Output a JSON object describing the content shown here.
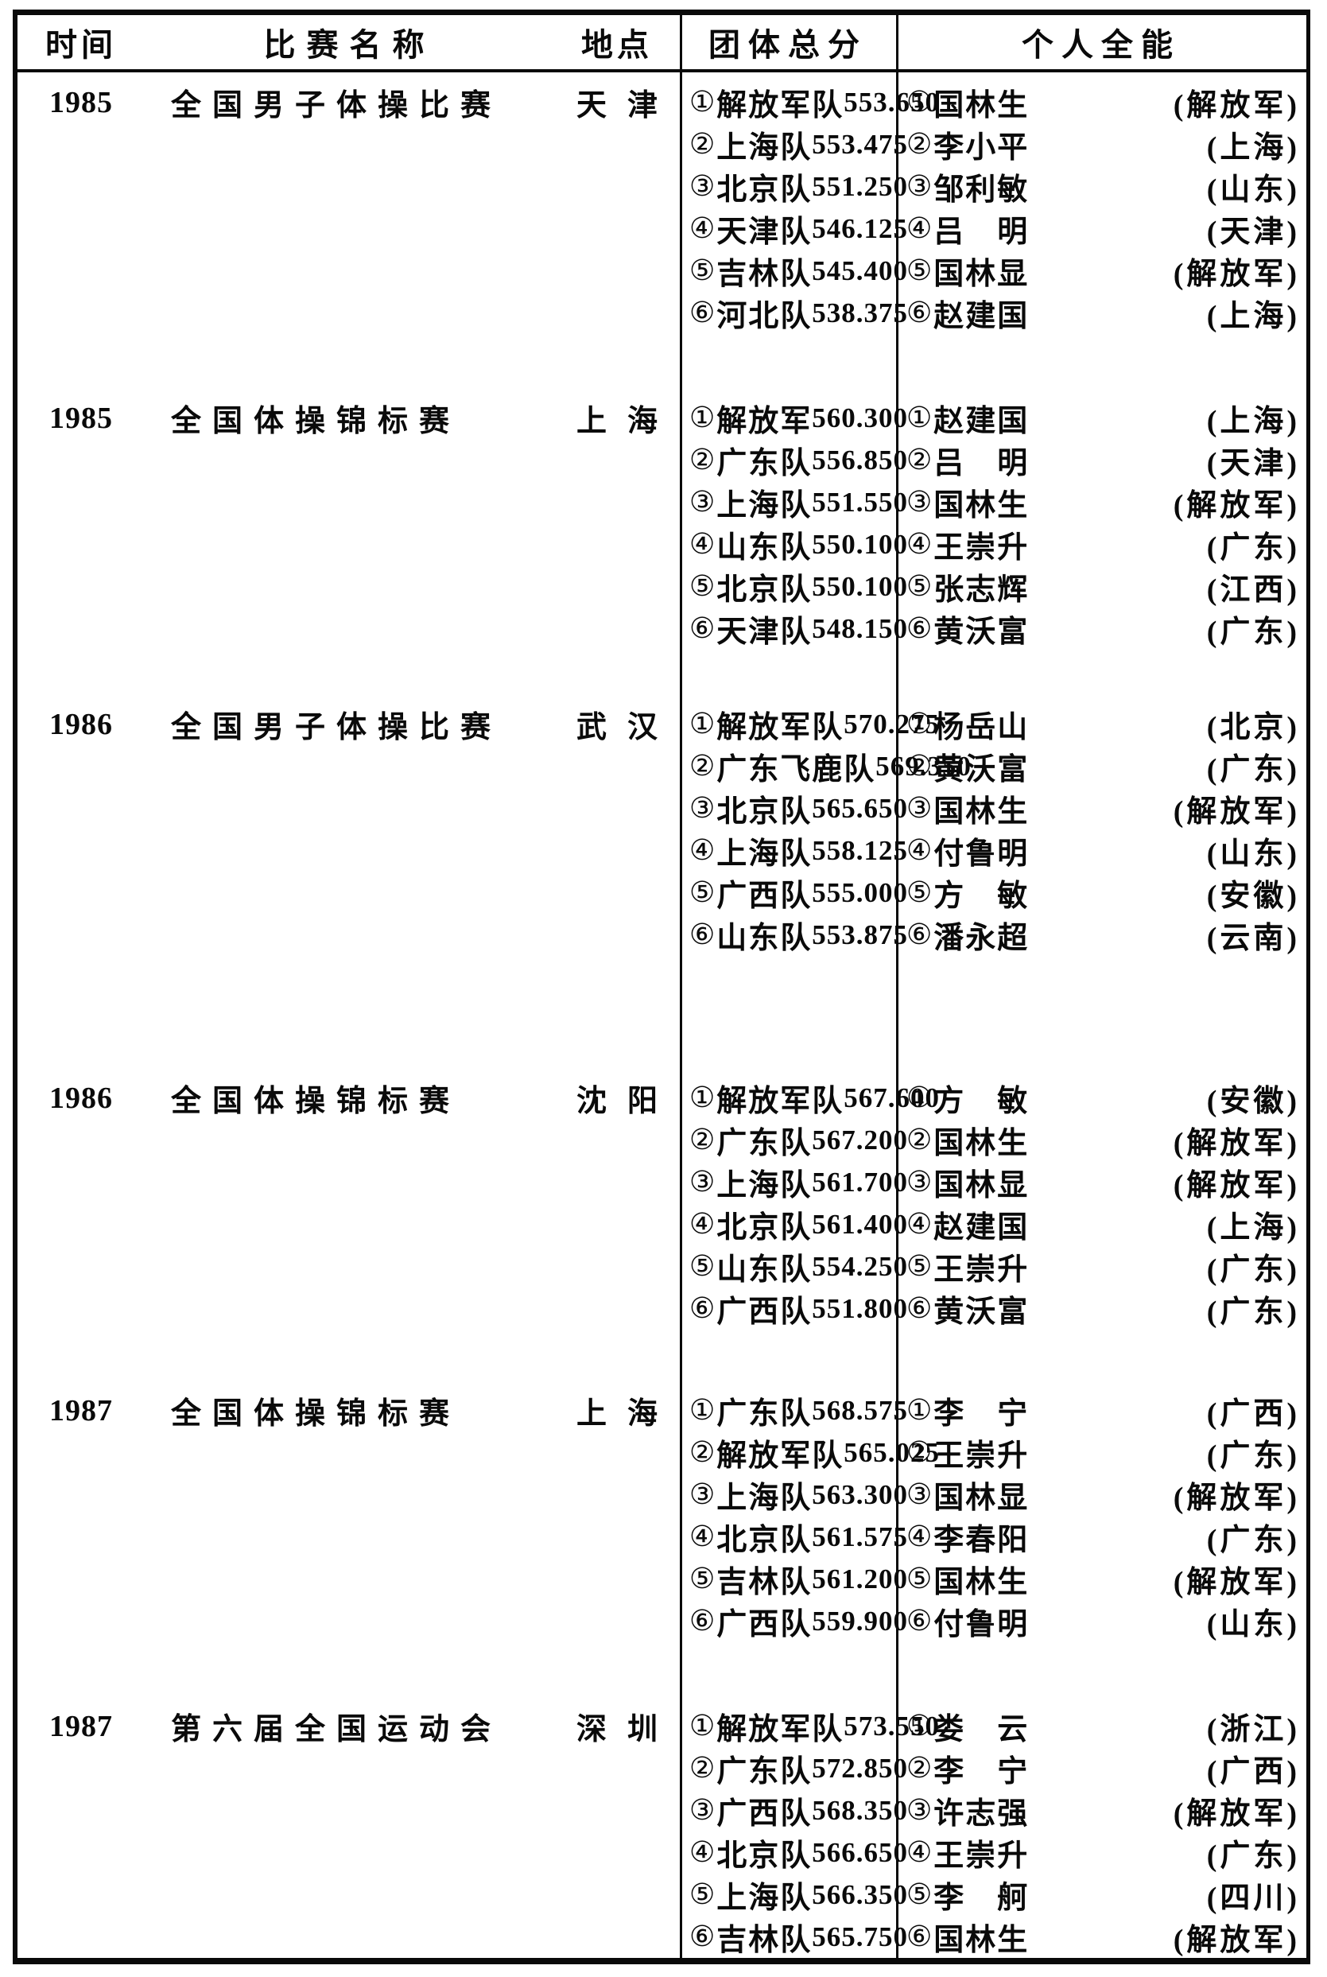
{
  "table": {
    "headers": [
      "时间",
      "比赛名称",
      "地点",
      "团体总分",
      "个人全能"
    ],
    "blocks": [
      {
        "year": "1985",
        "event": "全国男子体操比赛",
        "venue": "天津",
        "teams": [
          {
            "rank": "①",
            "name": "解放军队",
            "score": "553.650"
          },
          {
            "rank": "②",
            "name": "上海队",
            "score": "553.475"
          },
          {
            "rank": "③",
            "name": "北京队",
            "score": "551.250"
          },
          {
            "rank": "④",
            "name": "天津队",
            "score": "546.125"
          },
          {
            "rank": "⑤",
            "name": "吉林队",
            "score": "545.400"
          },
          {
            "rank": "⑥",
            "name": "河北队",
            "score": "538.375"
          }
        ],
        "individuals": [
          {
            "rank": "①",
            "name": "国林生",
            "region": "(解放军)"
          },
          {
            "rank": "②",
            "name": "李小平",
            "region": "(上海)"
          },
          {
            "rank": "③",
            "name": "邹利敏",
            "region": "(山东)"
          },
          {
            "rank": "④",
            "name": "吕　明",
            "region": "(天津)"
          },
          {
            "rank": "⑤",
            "name": "国林显",
            "region": "(解放军)"
          },
          {
            "rank": "⑥",
            "name": "赵建国",
            "region": "(上海)"
          }
        ]
      },
      {
        "year": "1985",
        "event": "全国体操锦标赛",
        "venue": "上海",
        "teams": [
          {
            "rank": "①",
            "name": "解放军",
            "score": "560.300"
          },
          {
            "rank": "②",
            "name": "广东队",
            "score": "556.850"
          },
          {
            "rank": "③",
            "name": "上海队",
            "score": "551.550"
          },
          {
            "rank": "④",
            "name": "山东队",
            "score": "550.100"
          },
          {
            "rank": "⑤",
            "name": "北京队",
            "score": "550.100"
          },
          {
            "rank": "⑥",
            "name": "天津队",
            "score": "548.150"
          }
        ],
        "individuals": [
          {
            "rank": "①",
            "name": "赵建国",
            "region": "(上海)"
          },
          {
            "rank": "②",
            "name": "吕　明",
            "region": "(天津)"
          },
          {
            "rank": "③",
            "name": "国林生",
            "region": "(解放军)"
          },
          {
            "rank": "④",
            "name": "王崇升",
            "region": "(广东)"
          },
          {
            "rank": "⑤",
            "name": "张志辉",
            "region": "(江西)"
          },
          {
            "rank": "⑥",
            "name": "黄沃富",
            "region": "(广东)"
          }
        ]
      },
      {
        "year": "1986",
        "event": "全国男子体操比赛",
        "venue": "武汉",
        "teams": [
          {
            "rank": "①",
            "name": "解放军队",
            "score": "570.275"
          },
          {
            "rank": "②",
            "name": "广东飞鹿队",
            "score": "569.350"
          },
          {
            "rank": "③",
            "name": "北京队",
            "score": "565.650"
          },
          {
            "rank": "④",
            "name": "上海队",
            "score": "558.125"
          },
          {
            "rank": "⑤",
            "name": "广西队",
            "score": "555.000"
          },
          {
            "rank": "⑥",
            "name": "山东队",
            "score": "553.875"
          }
        ],
        "individuals": [
          {
            "rank": "①",
            "name": "杨岳山",
            "region": "(北京)"
          },
          {
            "rank": "②",
            "name": "黄沃富",
            "region": "(广东)"
          },
          {
            "rank": "③",
            "name": "国林生",
            "region": "(解放军)"
          },
          {
            "rank": "④",
            "name": "付鲁明",
            "region": "(山东)"
          },
          {
            "rank": "⑤",
            "name": "方　敏",
            "region": "(安徽)"
          },
          {
            "rank": "⑥",
            "name": "潘永超",
            "region": "(云南)"
          }
        ]
      },
      {
        "year": "1986",
        "event": "全国体操锦标赛",
        "venue": "沈阳",
        "teams": [
          {
            "rank": "①",
            "name": "解放军队",
            "score": "567.600"
          },
          {
            "rank": "②",
            "name": "广东队",
            "score": "567.200"
          },
          {
            "rank": "③",
            "name": "上海队",
            "score": "561.700"
          },
          {
            "rank": "④",
            "name": "北京队",
            "score": "561.400"
          },
          {
            "rank": "⑤",
            "name": "山东队",
            "score": "554.250"
          },
          {
            "rank": "⑥",
            "name": "广西队",
            "score": "551.800"
          }
        ],
        "individuals": [
          {
            "rank": "①",
            "name": "方　敏",
            "region": "(安徽)"
          },
          {
            "rank": "②",
            "name": "国林生",
            "region": "(解放军)"
          },
          {
            "rank": "③",
            "name": "国林显",
            "region": "(解放军)"
          },
          {
            "rank": "④",
            "name": "赵建国",
            "region": "(上海)"
          },
          {
            "rank": "⑤",
            "name": "王崇升",
            "region": "(广东)"
          },
          {
            "rank": "⑥",
            "name": "黄沃富",
            "region": "(广东)"
          }
        ]
      },
      {
        "year": "1987",
        "event": "全国体操锦标赛",
        "venue": "上海",
        "teams": [
          {
            "rank": "①",
            "name": "广东队",
            "score": "568.575"
          },
          {
            "rank": "②",
            "name": "解放军队",
            "score": "565.025"
          },
          {
            "rank": "③",
            "name": "上海队",
            "score": "563.300"
          },
          {
            "rank": "④",
            "name": "北京队",
            "score": "561.575"
          },
          {
            "rank": "⑤",
            "name": "吉林队",
            "score": "561.200"
          },
          {
            "rank": "⑥",
            "name": "广西队",
            "score": "559.900"
          }
        ],
        "individuals": [
          {
            "rank": "①",
            "name": "李　宁",
            "region": "(广西)"
          },
          {
            "rank": "②",
            "name": "王崇升",
            "region": "(广东)"
          },
          {
            "rank": "③",
            "name": "国林显",
            "region": "(解放军)"
          },
          {
            "rank": "④",
            "name": "李春阳",
            "region": "(广东)"
          },
          {
            "rank": "⑤",
            "name": "国林生",
            "region": "(解放军)"
          },
          {
            "rank": "⑥",
            "name": "付鲁明",
            "region": "(山东)"
          }
        ]
      },
      {
        "year": "1987",
        "event": "第六届全国运动会",
        "venue": "深圳",
        "teams": [
          {
            "rank": "①",
            "name": "解放军队",
            "score": "573.550"
          },
          {
            "rank": "②",
            "name": "广东队",
            "score": "572.850"
          },
          {
            "rank": "③",
            "name": "广西队",
            "score": "568.350"
          },
          {
            "rank": "④",
            "name": "北京队",
            "score": "566.650"
          },
          {
            "rank": "⑤",
            "name": "上海队",
            "score": "566.350"
          },
          {
            "rank": "⑥",
            "name": "吉林队",
            "score": "565.750"
          }
        ],
        "individuals": [
          {
            "rank": "①",
            "name": "娄　云",
            "region": "(浙江)"
          },
          {
            "rank": "②",
            "name": "李　宁",
            "region": "(广西)"
          },
          {
            "rank": "③",
            "name": "许志强",
            "region": "(解放军)"
          },
          {
            "rank": "④",
            "name": "王崇升",
            "region": "(广东)"
          },
          {
            "rank": "⑤",
            "name": "李　舸",
            "region": "(四川)"
          },
          {
            "rank": "⑥",
            "name": "国林生",
            "region": "(解放军)"
          }
        ]
      }
    ]
  }
}
